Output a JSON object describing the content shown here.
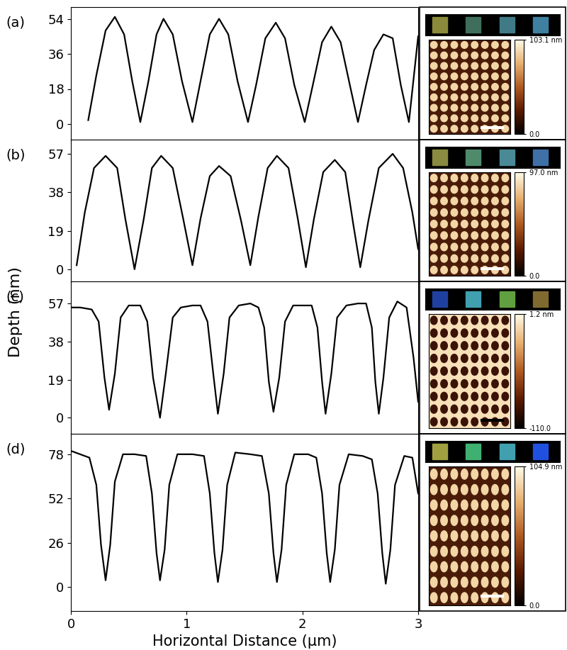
{
  "y_label": "Depth (nm)",
  "chart_data": [
    {
      "type": "line",
      "annotation": "(a)",
      "color": "#000000",
      "tick_labels": "y",
      "x": [
        0.15,
        0.22,
        0.3,
        0.38,
        0.46,
        0.53,
        0.6,
        0.67,
        0.74,
        0.8,
        0.88,
        0.96,
        1.05,
        1.12,
        1.2,
        1.28,
        1.36,
        1.44,
        1.53,
        1.6,
        1.68,
        1.77,
        1.85,
        1.93,
        2.02,
        2.09,
        2.17,
        2.25,
        2.33,
        2.41,
        2.48,
        2.55,
        2.62,
        2.7,
        2.78,
        2.85,
        2.92,
        3.0
      ],
      "values": [
        2,
        25,
        48,
        55,
        46,
        22,
        1,
        22,
        46,
        54,
        46,
        22,
        1,
        22,
        46,
        54,
        46,
        22,
        1,
        20,
        44,
        52,
        44,
        20,
        1,
        20,
        42,
        50,
        42,
        20,
        1,
        20,
        38,
        46,
        44,
        20,
        1,
        45
      ],
      "xlim": [
        0,
        3
      ],
      "xticks": [
        0,
        1,
        2,
        3
      ],
      "ylim": [
        -8,
        60
      ],
      "yticks": [
        0,
        18,
        36,
        54
      ],
      "inset": {
        "colors": [
          "#8a8a3a",
          "#3f6f5a",
          "#3f7a86",
          "#3f80a0"
        ],
        "colorbar_range": [
          0,
          103.1
        ],
        "colorbar_ticks": [
          {
            "value": 0,
            "label": "0.0"
          },
          {
            "value": 103.1,
            "label": "103.1 nm"
          }
        ]
      }
    },
    {
      "type": "line",
      "annotation": "(b)",
      "color": "#000000",
      "tick_labels": "y",
      "x": [
        0.05,
        0.12,
        0.2,
        0.3,
        0.4,
        0.47,
        0.55,
        0.63,
        0.7,
        0.78,
        0.88,
        0.97,
        1.05,
        1.12,
        1.2,
        1.28,
        1.38,
        1.47,
        1.55,
        1.62,
        1.7,
        1.78,
        1.88,
        1.96,
        2.03,
        2.1,
        2.18,
        2.28,
        2.37,
        2.44,
        2.5,
        2.57,
        2.66,
        2.78,
        2.87,
        2.95,
        3.0
      ],
      "values": [
        2,
        28,
        50,
        56,
        50,
        25,
        0,
        25,
        50,
        56,
        50,
        25,
        2,
        25,
        46,
        51,
        46,
        24,
        2,
        26,
        50,
        56,
        50,
        25,
        1,
        25,
        48,
        54,
        48,
        22,
        1,
        24,
        50,
        57,
        50,
        28,
        10
      ],
      "xlim": [
        0,
        3
      ],
      "xticks": [
        0,
        1,
        2,
        3
      ],
      "ylim": [
        -6,
        64
      ],
      "yticks": [
        0,
        19,
        38,
        57
      ],
      "inset": {
        "colors": [
          "#8a8a40",
          "#4f8a6a",
          "#4a8a96",
          "#3f70a8"
        ],
        "colorbar_range": [
          0,
          97.0
        ],
        "colorbar_ticks": [
          {
            "value": 0,
            "label": "0.0"
          },
          {
            "value": 97.0,
            "label": "97.0 nm"
          }
        ]
      }
    },
    {
      "type": "line",
      "annotation": "(c)",
      "color": "#000000",
      "tick_labels": "y",
      "x": [
        0,
        0.08,
        0.18,
        0.24,
        0.29,
        0.33,
        0.38,
        0.43,
        0.5,
        0.6,
        0.66,
        0.71,
        0.77,
        0.82,
        0.88,
        0.95,
        1.05,
        1.12,
        1.18,
        1.23,
        1.27,
        1.32,
        1.37,
        1.45,
        1.55,
        1.62,
        1.67,
        1.71,
        1.75,
        1.8,
        1.85,
        1.92,
        2.02,
        2.08,
        2.13,
        2.17,
        2.2,
        2.25,
        2.3,
        2.38,
        2.48,
        2.55,
        2.6,
        2.63,
        2.66,
        2.7,
        2.75,
        2.82,
        2.9,
        2.96,
        3.0
      ],
      "values": [
        55,
        55,
        54,
        48,
        20,
        4,
        22,
        50,
        56,
        56,
        48,
        20,
        0,
        22,
        50,
        55,
        56,
        56,
        48,
        22,
        2,
        22,
        50,
        56,
        57,
        55,
        45,
        18,
        3,
        20,
        48,
        56,
        56,
        56,
        45,
        18,
        2,
        22,
        50,
        56,
        57,
        57,
        45,
        18,
        2,
        20,
        50,
        58,
        55,
        30,
        8
      ],
      "xlim": [
        0,
        3
      ],
      "xticks": [
        0,
        1,
        2,
        3
      ],
      "ylim": [
        -8,
        68
      ],
      "yticks": [
        0,
        19,
        38,
        57
      ],
      "inset": {
        "colors": [
          "#2040a0",
          "#40a0b0",
          "#60a040",
          "#806a30"
        ],
        "colorbar_range": [
          -110.0,
          1.2
        ],
        "colorbar_ticks": [
          {
            "value": -110.0,
            "label": "-110.0"
          },
          {
            "value": 1.2,
            "label": "1.2 nm"
          }
        ]
      }
    },
    {
      "type": "line",
      "annotation": "(d)",
      "color": "#000000",
      "x_label": "Horizontal Distance (μm)",
      "x": [
        0,
        0.08,
        0.16,
        0.22,
        0.26,
        0.3,
        0.34,
        0.38,
        0.45,
        0.55,
        0.65,
        0.7,
        0.74,
        0.77,
        0.81,
        0.85,
        0.92,
        1.05,
        1.15,
        1.2,
        1.24,
        1.27,
        1.31,
        1.35,
        1.42,
        1.55,
        1.65,
        1.71,
        1.75,
        1.78,
        1.82,
        1.86,
        1.93,
        2.05,
        2.12,
        2.17,
        2.21,
        2.24,
        2.28,
        2.32,
        2.4,
        2.52,
        2.6,
        2.65,
        2.69,
        2.72,
        2.76,
        2.8,
        2.88,
        2.95,
        3.0
      ],
      "values": [
        80,
        78,
        76,
        60,
        25,
        4,
        25,
        62,
        78,
        78,
        77,
        55,
        20,
        4,
        22,
        60,
        78,
        78,
        77,
        55,
        20,
        3,
        22,
        60,
        79,
        78,
        77,
        55,
        20,
        3,
        22,
        60,
        78,
        78,
        76,
        55,
        20,
        3,
        22,
        60,
        78,
        77,
        75,
        55,
        20,
        2,
        22,
        60,
        77,
        76,
        55
      ],
      "xlim": [
        0,
        3
      ],
      "xticks": [
        0,
        1,
        2,
        3
      ],
      "ylim": [
        -14,
        90
      ],
      "yticks": [
        0,
        26,
        52,
        78
      ],
      "inset": {
        "colors": [
          "#a0a040",
          "#40b070",
          "#40a0b0",
          "#2050e0"
        ],
        "colorbar_range": [
          0,
          104.9
        ],
        "colorbar_ticks": [
          {
            "value": 0,
            "label": "0.0"
          },
          {
            "value": 104.9,
            "label": "104.9 nm"
          }
        ]
      }
    }
  ]
}
